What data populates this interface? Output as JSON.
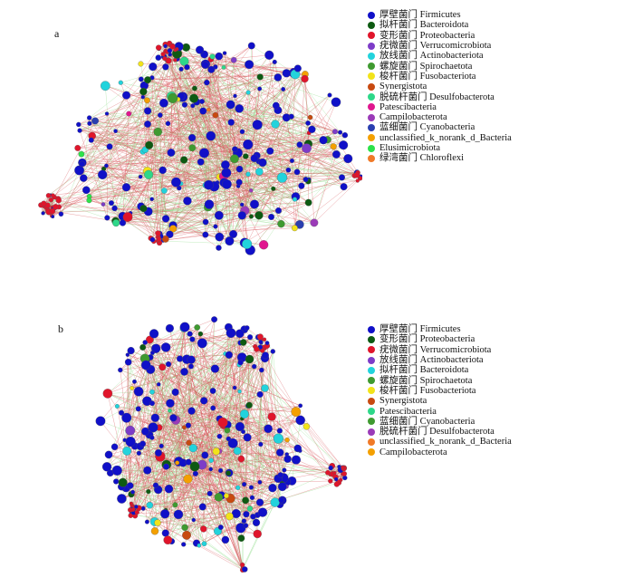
{
  "panels": [
    {
      "id": "a",
      "letter": "a",
      "legend": [
        {
          "label": "厚壁菌门 Firmicutes",
          "color": "#1010c8"
        },
        {
          "label": "拟杆菌门 Bacteroidota",
          "color": "#0d5a12"
        },
        {
          "label": "变形菌门 Proteobacteria",
          "color": "#e0152b"
        },
        {
          "label": "疣微菌门 Verrucomicrobiota",
          "color": "#7d3cc8"
        },
        {
          "label": "放线菌门 Actinobacteriota",
          "color": "#22d3dc"
        },
        {
          "label": "螺旋菌门 Spirochaetota",
          "color": "#3f9a30"
        },
        {
          "label": "梭杆菌门 Fusobacteriota",
          "color": "#f2e31a"
        },
        {
          "label": "Synergistota",
          "color": "#c84a10"
        },
        {
          "label": "脱硫杆菌门 Desulfobacterota",
          "color": "#2ed889"
        },
        {
          "label": "Patescibacteria",
          "color": "#e0178f"
        },
        {
          "label": "Campilobacterota",
          "color": "#9b3bb8"
        },
        {
          "label": "蓝细菌门 Cyanobacteria",
          "color": "#2a3fb0"
        },
        {
          "label": "unclassified_k_norank_d_Bacteria",
          "color": "#f4a000"
        },
        {
          "label": "Elusimicrobiota",
          "color": "#2ce24a"
        },
        {
          "label": "绿湾菌门 Chloroflexi",
          "color": "#f07a28"
        }
      ]
    },
    {
      "id": "b",
      "letter": "b",
      "legend": [
        {
          "label": "厚壁菌门 Firmicutes",
          "color": "#1010c8"
        },
        {
          "label": "变形菌门 Proteobacteria",
          "color": "#0d5a12"
        },
        {
          "label": "疣微菌门 Verrucomicrobiota",
          "color": "#e0152b"
        },
        {
          "label": "放线菌门 Actinobacteriota",
          "color": "#7d3cc8"
        },
        {
          "label": "拟杆菌门 Bacteroidota",
          "color": "#22d3dc"
        },
        {
          "label": "螺旋菌门 Spirochaetota",
          "color": "#3f9a30"
        },
        {
          "label": "梭杆菌门 Fusobacteriota",
          "color": "#f2e31a"
        },
        {
          "label": "Synergistota",
          "color": "#c84a10"
        },
        {
          "label": "Patescibacteria",
          "color": "#2ed889"
        },
        {
          "label": "蓝细菌门 Cyanobacteria",
          "color": "#3f9a30"
        },
        {
          "label": "脱硫杆菌门 Desulfobacterota",
          "color": "#9b3bb8"
        },
        {
          "label": "unclassified_k_norank_d_Bacteria",
          "color": "#f07a28"
        },
        {
          "label": "Campilobacterota",
          "color": "#f4a000"
        }
      ]
    }
  ],
  "edge_colors": {
    "positive": "#d9545a",
    "negative": "#8fdc8a"
  }
}
